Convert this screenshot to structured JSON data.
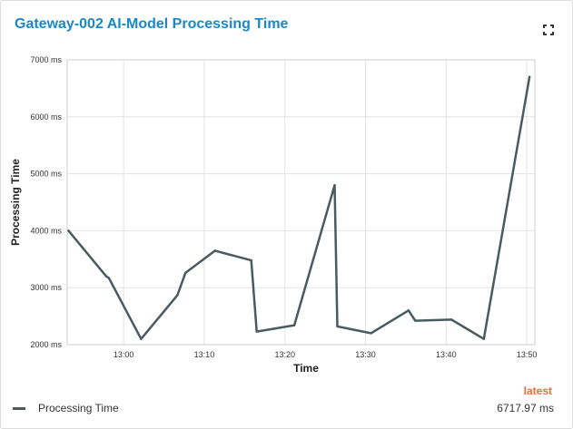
{
  "header": {
    "title": "Gateway-002 AI-Model Processing Time",
    "fullscreen_icon": "fullscreen-icon"
  },
  "chart_data": {
    "type": "line",
    "xlabel": "Time",
    "ylabel": "Processing Time",
    "x_range": [
      "12:53",
      "13:51"
    ],
    "ylim": [
      2000,
      7000
    ],
    "y_ticks": [
      2000,
      3000,
      4000,
      5000,
      6000,
      7000
    ],
    "y_tick_labels": [
      "2000 ms",
      "3000 ms",
      "4000 ms",
      "5000 ms",
      "6000 ms",
      "7000 ms"
    ],
    "x_ticks": [
      "13:00",
      "13:10",
      "13:20",
      "13:30",
      "13:40",
      "13:50"
    ],
    "grid": true,
    "legend_position": "bottom-left",
    "series": [
      {
        "name": "Processing Time",
        "color": "#4a5a61",
        "points": [
          {
            "x": "12:53:10",
            "y": 4000
          },
          {
            "x": "12:57:50",
            "y": 3200
          },
          {
            "x": "12:58:10",
            "y": 3170
          },
          {
            "x": "13:02:10",
            "y": 2100
          },
          {
            "x": "13:06:40",
            "y": 2870
          },
          {
            "x": "13:07:40",
            "y": 3260
          },
          {
            "x": "13:11:20",
            "y": 3650
          },
          {
            "x": "13:15:50",
            "y": 3480
          },
          {
            "x": "13:16:30",
            "y": 2230
          },
          {
            "x": "13:21:10",
            "y": 2340
          },
          {
            "x": "13:26:10",
            "y": 4800
          },
          {
            "x": "13:26:30",
            "y": 2320
          },
          {
            "x": "13:30:40",
            "y": 2200
          },
          {
            "x": "13:35:20",
            "y": 2600
          },
          {
            "x": "13:36:10",
            "y": 2420
          },
          {
            "x": "13:40:40",
            "y": 2440
          },
          {
            "x": "13:44:40",
            "y": 2100
          },
          {
            "x": "13:50:20",
            "y": 6700
          }
        ]
      }
    ]
  },
  "legend": {
    "latest_label": "latest",
    "series_name": "Processing Time",
    "latest_value": "6717.97 ms"
  }
}
